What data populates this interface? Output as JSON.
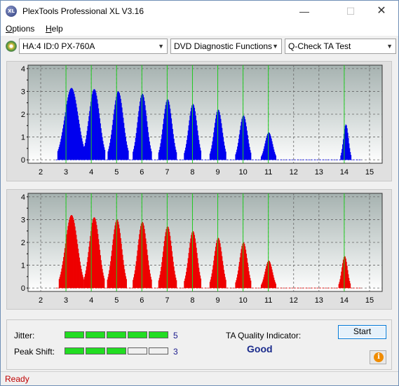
{
  "window": {
    "title": "PlexTools Professional XL V3.16",
    "icon_text": "XL",
    "minimize_glyph": "—",
    "maximize_glyph": "☐",
    "close_glyph": "✕"
  },
  "menu": {
    "options": {
      "hot": "O",
      "rest": "ptions"
    },
    "help": {
      "hot": "H",
      "rest": "elp"
    }
  },
  "toolbar": {
    "drive": "HA:4 ID:0  PX-760A",
    "function": "DVD Diagnostic Functions",
    "test": "Q-Check TA Test",
    "arrow": "▼"
  },
  "results": {
    "jitter_label": "Jitter:",
    "jitter_value": "5",
    "jitter_level": 5,
    "peak_shift_label": "Peak Shift:",
    "peak_shift_value": "3",
    "peak_shift_level": 3,
    "meter_segments": 5,
    "ta_quality_label": "TA Quality Indicator:",
    "ta_quality_value": "Good"
  },
  "buttons": {
    "start": "Start",
    "info_glyph": "i"
  },
  "status": {
    "text": "Ready"
  },
  "colors": {
    "top_chart_bars": "#0000ee",
    "bottom_chart_bars": "#ee0000",
    "marker_lines": "#22cc22",
    "meter_on": "#22dd22",
    "status_text": "#c00000"
  },
  "chart_data": [
    {
      "type": "bar",
      "name": "top-chart",
      "x_ticks": [
        "2",
        "3",
        "4",
        "5",
        "6",
        "7",
        "8",
        "9",
        "10",
        "11",
        "12",
        "13",
        "14",
        "15"
      ],
      "y_ticks": [
        "0",
        "0.5",
        "1",
        "1.5",
        "2",
        "2.5",
        "3",
        "3.5",
        "4"
      ],
      "xlim": [
        1.5,
        15.5
      ],
      "ylim": [
        -0.15,
        4.15
      ],
      "grid": true,
      "markers": [
        3,
        4,
        5,
        6,
        7,
        8,
        9,
        10,
        11,
        14
      ],
      "peaks": [
        {
          "center": 3.2,
          "height": 3.15,
          "width": 0.4
        },
        {
          "center": 4.1,
          "height": 3.1,
          "width": 0.32
        },
        {
          "center": 5.05,
          "height": 3.0,
          "width": 0.3
        },
        {
          "center": 6.0,
          "height": 2.9,
          "width": 0.27
        },
        {
          "center": 7.0,
          "height": 2.65,
          "width": 0.26
        },
        {
          "center": 8.0,
          "height": 2.45,
          "width": 0.25
        },
        {
          "center": 9.0,
          "height": 2.2,
          "width": 0.24
        },
        {
          "center": 10.0,
          "height": 1.95,
          "width": 0.23
        },
        {
          "center": 11.0,
          "height": 1.2,
          "width": 0.22
        },
        {
          "center": 14.05,
          "height": 1.55,
          "width": 0.15
        }
      ]
    },
    {
      "type": "bar",
      "name": "bottom-chart",
      "x_ticks": [
        "2",
        "3",
        "4",
        "5",
        "6",
        "7",
        "8",
        "9",
        "10",
        "11",
        "12",
        "13",
        "14",
        "15"
      ],
      "y_ticks": [
        "0",
        "0.5",
        "1",
        "1.5",
        "2",
        "2.5",
        "3",
        "3.5",
        "4"
      ],
      "xlim": [
        1.5,
        15.5
      ],
      "ylim": [
        -0.15,
        4.15
      ],
      "grid": true,
      "markers": [
        3,
        4,
        5,
        6,
        7,
        8,
        9,
        10,
        11,
        14
      ],
      "peaks": [
        {
          "center": 3.2,
          "height": 3.2,
          "width": 0.36
        },
        {
          "center": 4.1,
          "height": 3.1,
          "width": 0.3
        },
        {
          "center": 5.0,
          "height": 3.0,
          "width": 0.28
        },
        {
          "center": 6.0,
          "height": 2.9,
          "width": 0.27
        },
        {
          "center": 7.0,
          "height": 2.7,
          "width": 0.26
        },
        {
          "center": 8.0,
          "height": 2.5,
          "width": 0.25
        },
        {
          "center": 9.0,
          "height": 2.2,
          "width": 0.24
        },
        {
          "center": 10.0,
          "height": 2.0,
          "width": 0.23
        },
        {
          "center": 11.0,
          "height": 1.2,
          "width": 0.22
        },
        {
          "center": 14.0,
          "height": 1.4,
          "width": 0.17
        }
      ]
    }
  ]
}
